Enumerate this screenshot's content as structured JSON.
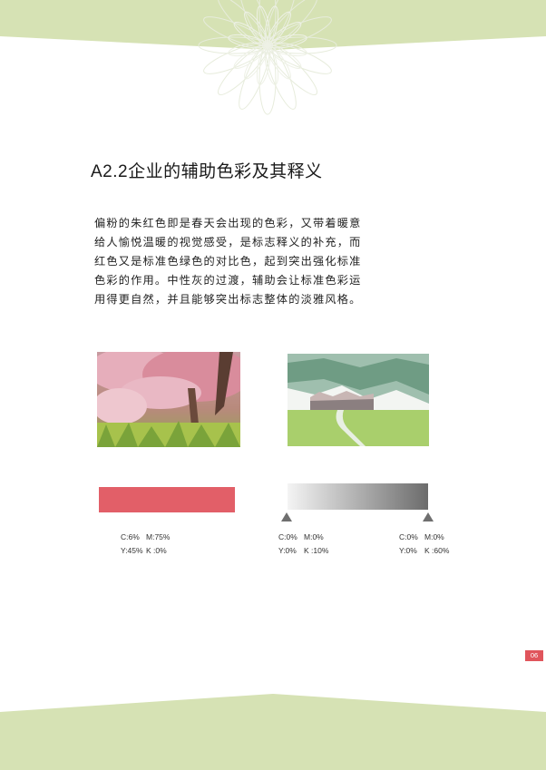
{
  "title": "A2.2企业的辅助色彩及其释义",
  "body": "偏粉的朱红色即是春天会出现的色彩，又带着暖意给人愉悦温暖的视觉感受，是标志释义的补充，而红色又是标准色绿色的对比色，起到突出强化标准色彩的作用。中性灰的过渡，辅助会让标准色彩运用得更自然，并且能够突出标志整体的淡雅风格。",
  "colors": {
    "accent_red": "#e25f68",
    "band_green": "#d6e2b4",
    "gradient_light": "#f4f4f4",
    "gradient_dark": "#6c6c6c",
    "page_badge": "#e0555c"
  },
  "swatches": [
    {
      "line1": [
        "C:6%",
        "M:75%"
      ],
      "line2": [
        "Y:45%",
        "K :0%"
      ]
    },
    {
      "line1": [
        "C:0%",
        "M:0%"
      ],
      "line2": [
        "Y:0%",
        "K :10%"
      ]
    },
    {
      "line1": [
        "C:0%",
        "M:0%"
      ],
      "line2": [
        "Y:0%",
        "K :60%"
      ]
    }
  ],
  "page_number": "06"
}
